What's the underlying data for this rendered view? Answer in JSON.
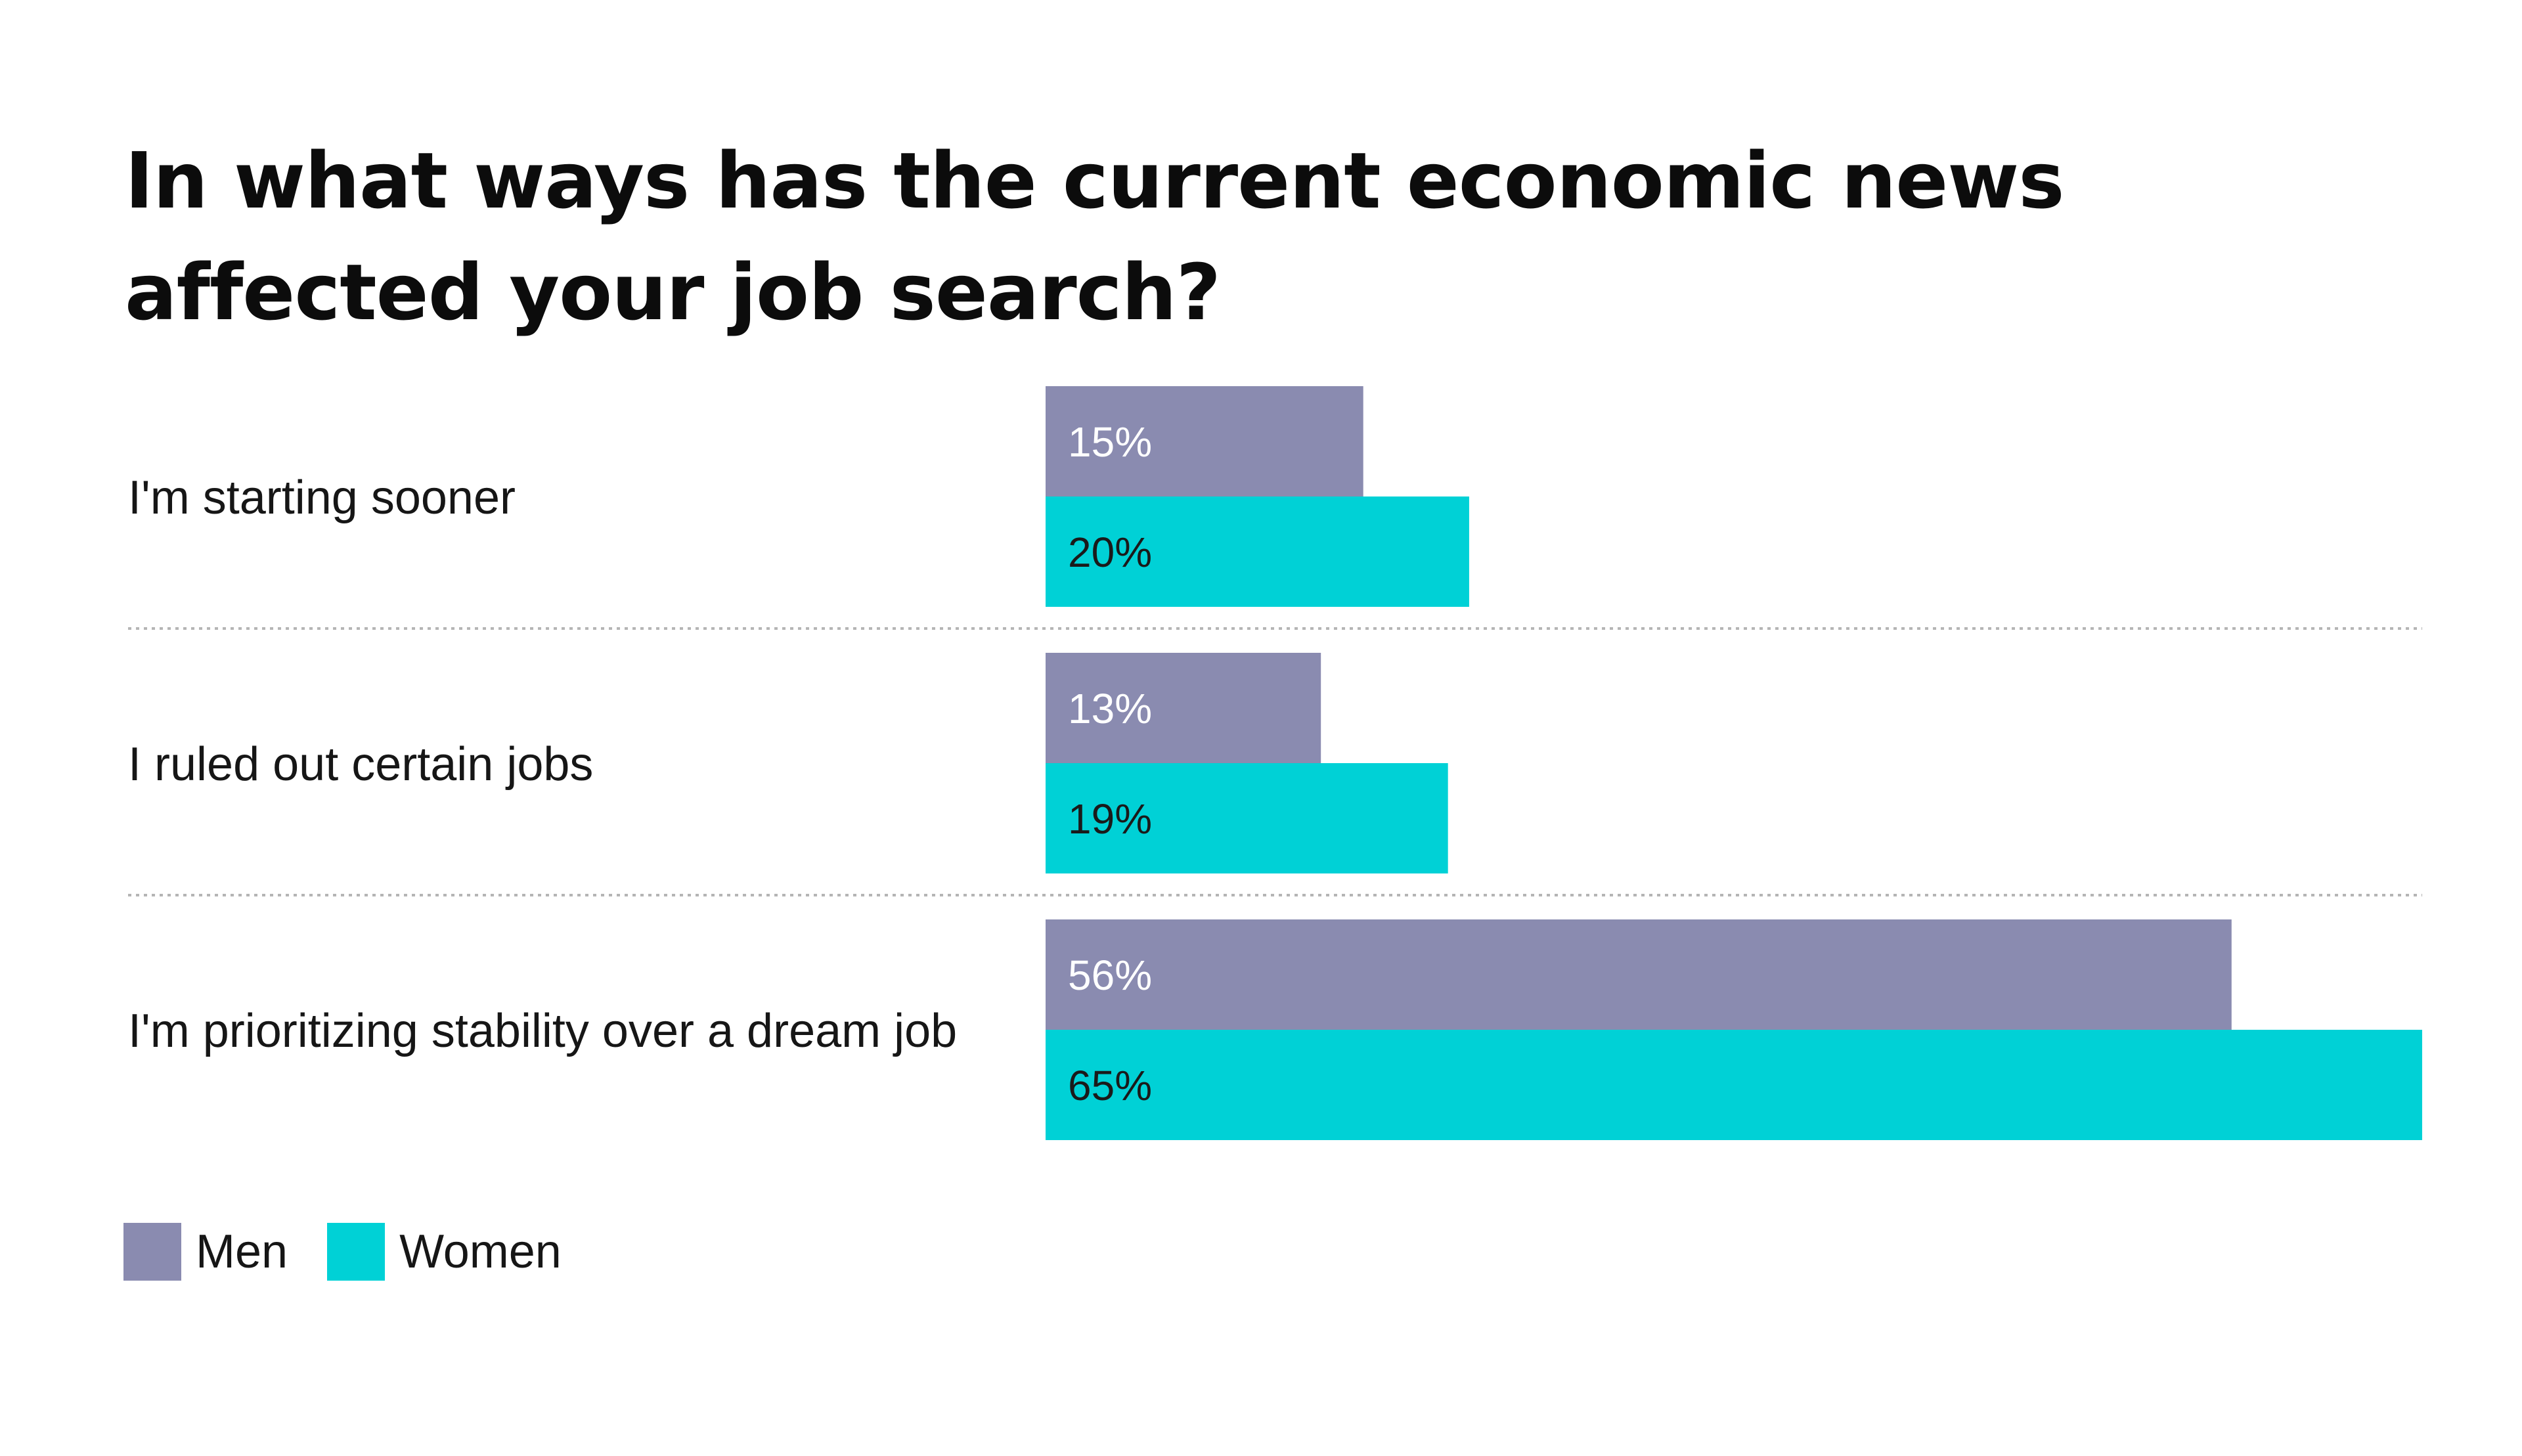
{
  "chart_data": {
    "type": "bar",
    "orientation": "horizontal",
    "title": "In what ways has the current economic news affected your job search?",
    "categories": [
      "I'm starting sooner",
      "I ruled out certain jobs",
      "I'm prioritizing stability over a dream job"
    ],
    "series": [
      {
        "name": "Men",
        "values": [
          15,
          13,
          56
        ],
        "labels": [
          "15%",
          "13%",
          "56%"
        ],
        "color": "#8a8bb0",
        "label_color": "#ffffff"
      },
      {
        "name": "Women",
        "values": [
          20,
          19,
          65
        ],
        "labels": [
          "20%",
          "19%",
          "65%"
        ],
        "color": "#00d1d6",
        "label_color": "#1a1a1a"
      }
    ],
    "xlim": [
      0,
      65
    ],
    "value_unit": "%",
    "legend_position": "bottom-left",
    "grid": false,
    "separators": "dotted"
  }
}
